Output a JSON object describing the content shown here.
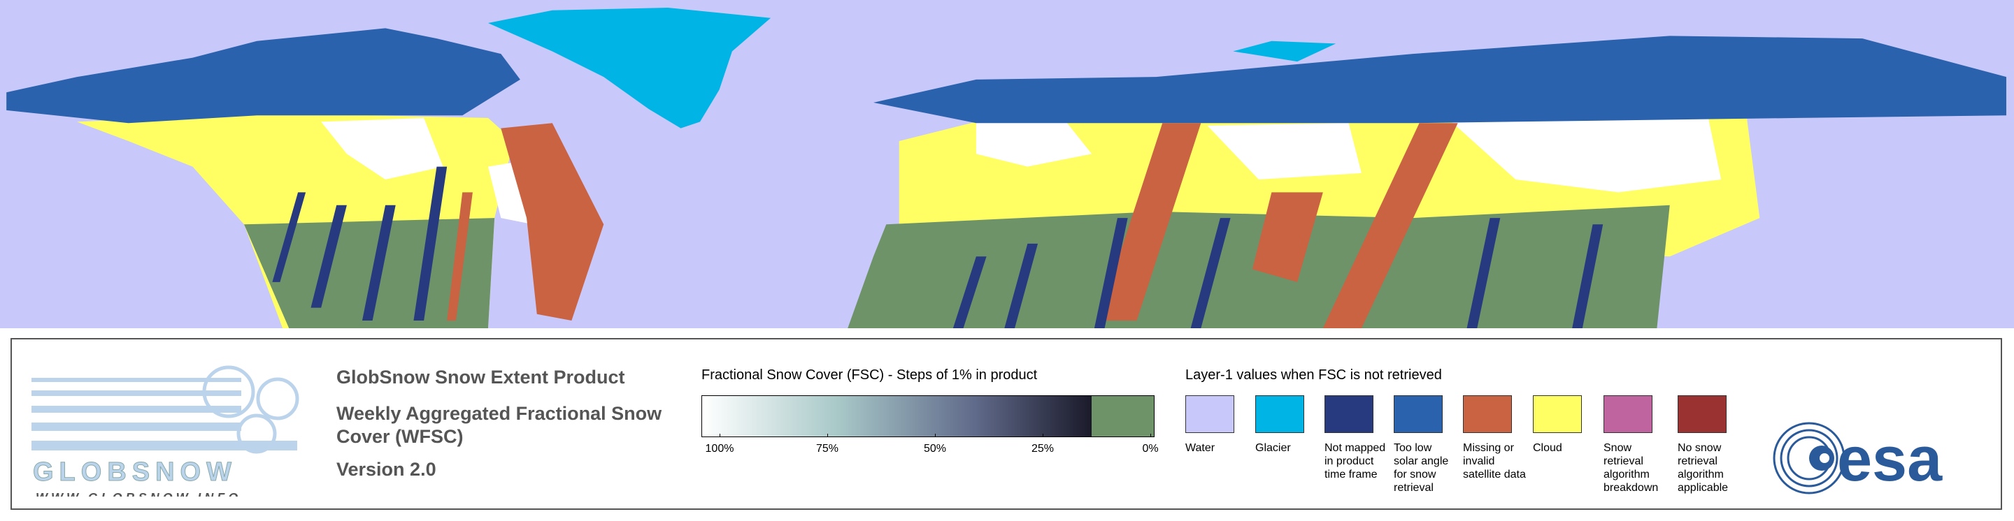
{
  "logo": {
    "name": "GLOBSNOW",
    "url": "WWW.GLOBSNOW.INFO"
  },
  "product": {
    "title": "GlobSnow Snow Extent Product",
    "subtitle": "Weekly Aggregated Fractional Snow Cover (WFSC)",
    "version": "Version 2.0"
  },
  "fsc_scale": {
    "title": "Fractional Snow Cover (FSC) - Steps of 1% in product",
    "ticks": [
      "100%",
      "75%",
      "50%",
      "25%",
      "0%"
    ],
    "no_snow_color": "#6e9369"
  },
  "layer1": {
    "title": "Layer-1 values when FSC is not retrieved",
    "items": [
      {
        "label": "Water",
        "color": "#c8c8fa"
      },
      {
        "label": "Glacier",
        "color": "#00b4e6"
      },
      {
        "label": "Not mapped in product time frame",
        "color": "#273a80"
      },
      {
        "label": "Too low solar angle for snow retrieval",
        "color": "#2a62ad"
      },
      {
        "label": "Missing or invalid satellite data",
        "color": "#c96342"
      },
      {
        "label": "Cloud",
        "color": "#ffff64"
      },
      {
        "label": "Snow retrieval algorithm breakdown",
        "color": "#c064a0"
      },
      {
        "label": "No snow retrieval algorithm applicable",
        "color": "#9b3232"
      }
    ]
  },
  "agency": "esa"
}
